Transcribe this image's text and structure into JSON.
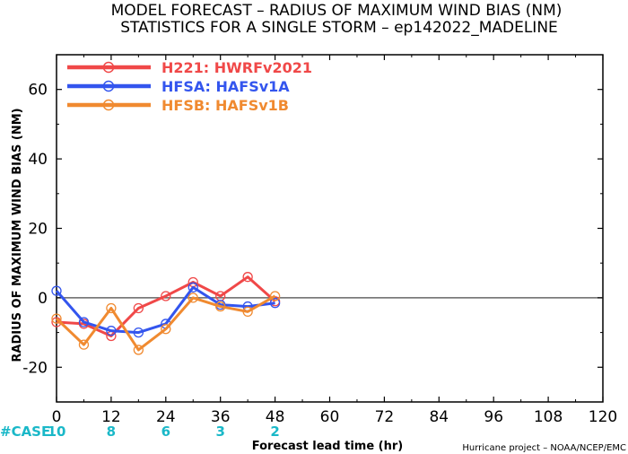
{
  "chart_data": {
    "type": "line",
    "title": "MODEL FORECAST – RADIUS OF MAXIMUM WIND BIAS (NM)",
    "subtitle": "STATISTICS FOR A SINGLE STORM – ep142022_MADELINE",
    "xlabel": "Forecast lead time (hr)",
    "ylabel": "RADIUS OF MAXIMUM WIND BIAS (NM)",
    "xlim": [
      0,
      120
    ],
    "ylim": [
      -30,
      70
    ],
    "xticks": [
      "0",
      "12",
      "24",
      "36",
      "48",
      "60",
      "72",
      "84",
      "96",
      "108",
      "120"
    ],
    "yticks": [
      "-20",
      "0",
      "20",
      "40",
      "60"
    ],
    "zero_line": true,
    "legend_placement": "top-left",
    "series": [
      {
        "name": "H221: HWRFv2021",
        "color": "#f04848",
        "x": [
          0,
          6,
          12,
          18,
          24,
          30,
          36,
          42,
          48
        ],
        "y": [
          -7,
          -7.5,
          -11,
          -3,
          0.5,
          4.5,
          0.5,
          6,
          -1
        ]
      },
      {
        "name": "HFSA: HAFSv1A",
        "color": "#3355ee",
        "x": [
          0,
          6,
          12,
          18,
          24,
          30,
          36,
          42,
          48
        ],
        "y": [
          2,
          -7,
          -9.5,
          -10,
          -7.5,
          3,
          -2,
          -2.5,
          -1.5
        ]
      },
      {
        "name": "HFSB: HAFSv1B",
        "color": "#f08a30",
        "x": [
          0,
          6,
          12,
          18,
          24,
          30,
          36,
          42,
          48
        ],
        "y": [
          -6,
          -13.5,
          -3,
          -15,
          -9,
          0,
          -2.5,
          -4,
          0.5
        ]
      }
    ],
    "case_label": "#CASE",
    "case_counts": [
      {
        "x": 0,
        "label": "10"
      },
      {
        "x": 12,
        "label": "8"
      },
      {
        "x": 24,
        "label": "6"
      },
      {
        "x": 36,
        "label": "3"
      },
      {
        "x": 48,
        "label": "2"
      }
    ],
    "case_color": "#1ab8c8",
    "credit": "Hurricane project – NOAA/NCEP/EMC"
  }
}
